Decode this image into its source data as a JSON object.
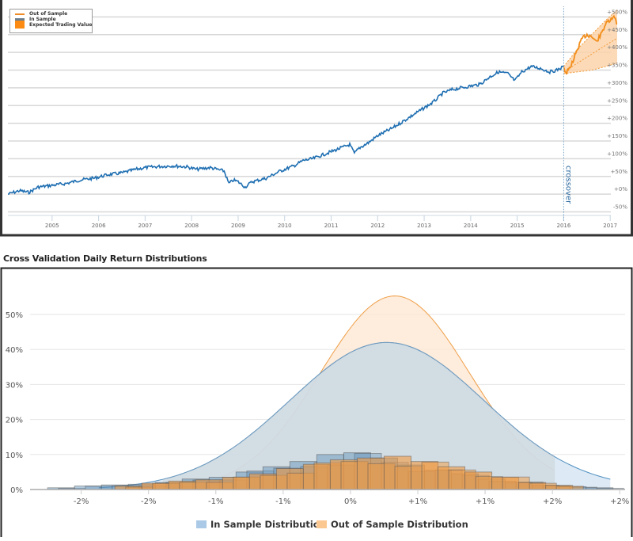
{
  "chart_data": [
    {
      "type": "line",
      "title": "",
      "legend": {
        "placement": "top-left",
        "entries": [
          "Out of Sample",
          "In Sample",
          "Expected Trading Value"
        ]
      },
      "xlabel": "",
      "ylabel": "",
      "x_ticks": [
        "2005",
        "2006",
        "2007",
        "2008",
        "2009",
        "2010",
        "2011",
        "2012",
        "2013",
        "2014",
        "2015",
        "2016",
        "2017"
      ],
      "xlim": [
        2004.05,
        2017.15
      ],
      "y_ticks": [
        "-50%",
        "+0%",
        "+50%",
        "+100%",
        "+150%",
        "+200%",
        "+250%",
        "+300%",
        "+350%",
        "+400%",
        "+450%",
        "+500%"
      ],
      "ylim": [
        -60,
        530
      ],
      "y_axis_side": "right",
      "grid": true,
      "annotation": {
        "label": "crossover",
        "x": 2016.0
      },
      "series": [
        {
          "name": "In Sample",
          "color": "#1f6fb2",
          "x": [
            2004.05,
            2004.3,
            2004.5,
            2004.7,
            2005.0,
            2005.3,
            2005.6,
            2005.9,
            2006.2,
            2006.5,
            2006.8,
            2007.0,
            2007.3,
            2007.6,
            2007.9,
            2008.1,
            2008.4,
            2008.7,
            2008.8,
            2008.9,
            2009.0,
            2009.15,
            2009.3,
            2009.6,
            2009.9,
            2010.2,
            2010.4,
            2010.6,
            2010.8,
            2011.0,
            2011.2,
            2011.4,
            2011.5,
            2011.6,
            2011.8,
            2012.0,
            2012.3,
            2012.6,
            2012.9,
            2013.2,
            2013.4,
            2013.6,
            2013.8,
            2014.0,
            2014.2,
            2014.4,
            2014.6,
            2014.8,
            2014.95,
            2015.1,
            2015.3,
            2015.5,
            2015.6,
            2015.7,
            2015.85,
            2016.0
          ],
          "y": [
            0,
            10,
            5,
            20,
            25,
            30,
            40,
            45,
            55,
            60,
            70,
            75,
            78,
            80,
            77,
            70,
            75,
            65,
            30,
            40,
            35,
            20,
            35,
            45,
            65,
            80,
            95,
            100,
            110,
            120,
            130,
            140,
            115,
            130,
            145,
            165,
            185,
            210,
            235,
            260,
            285,
            295,
            300,
            305,
            310,
            330,
            345,
            340,
            320,
            345,
            360,
            355,
            350,
            345,
            350,
            360
          ]
        },
        {
          "name": "Out of Sample",
          "color": "#f28e1c",
          "x": [
            2016.0,
            2016.05,
            2016.1,
            2016.2,
            2016.3,
            2016.4,
            2016.5,
            2016.6,
            2016.7,
            2016.8,
            2016.9,
            2017.0,
            2017.1,
            2017.15
          ],
          "y": [
            360,
            340,
            350,
            375,
            410,
            440,
            450,
            445,
            430,
            450,
            480,
            490,
            500,
            480
          ]
        },
        {
          "name": "Expected Trading Value",
          "color": "#f28e1c",
          "type": "band",
          "x": [
            2016.0,
            2016.3,
            2016.6,
            2016.9,
            2017.15
          ],
          "upper": [
            360,
            410,
            450,
            490,
            520
          ],
          "center": [
            345,
            370,
            395,
            420,
            440
          ],
          "lower": [
            340,
            345,
            350,
            360,
            370
          ]
        }
      ]
    },
    {
      "type": "area",
      "title": "Cross Validation Daily Return Distributions",
      "xlabel": "",
      "ylabel": "",
      "x_ticks": [
        "-2%",
        "-2%",
        "-1%",
        "-1%",
        "0%",
        "+1%",
        "+1%",
        "+2%",
        "+2%"
      ],
      "x_tick_values": [
        -2.25,
        -1.75,
        -1.25,
        -0.75,
        -0.25,
        0.25,
        0.75,
        1.25,
        1.75
      ],
      "xlim": [
        -2.63,
        1.79
      ],
      "y_ticks": [
        "0%",
        "10%",
        "20%",
        "30%",
        "40%",
        "50%"
      ],
      "ylim": [
        0,
        0.58
      ],
      "grid": true,
      "legend": {
        "placement": "bottom-center",
        "entries": [
          "In Sample Distribution",
          "Out of Sample Distribution"
        ]
      },
      "series": [
        {
          "name": "In Sample Distribution",
          "color": "#4f8fc0",
          "fill": "#a9c9e6",
          "curve": {
            "mean": 0.02,
            "peak": 0.42,
            "sd": 0.72,
            "x_range": [
              -2.12,
              1.68
            ]
          },
          "histogram": {
            "bin_edges": [
              -2.5,
              -2.3,
              -2.1,
              -1.9,
              -1.7,
              -1.5,
              -1.3,
              -1.1,
              -0.9,
              -0.7,
              -0.5,
              -0.3,
              -0.1,
              0.1,
              0.3,
              0.5,
              0.7,
              0.9,
              1.1,
              1.3,
              1.5,
              1.7
            ],
            "values": [
              0.005,
              0.01,
              0.013,
              0.015,
              0.02,
              0.03,
              0.035,
              0.05,
              0.065,
              0.08,
              0.1,
              0.105,
              0.09,
              0.07,
              0.055,
              0.045,
              0.03,
              0.02,
              0.012,
              0.008,
              0.005
            ]
          }
        },
        {
          "name": "Out of Sample Distribution",
          "color": "#ef9f48",
          "fill": "#fcc891",
          "curve": {
            "mean": 0.08,
            "peak": 0.553,
            "sd": 0.55,
            "x_range": [
              -1.66,
              1.27
            ]
          },
          "histogram": {
            "bin_edges": [
              -2.0,
              -1.8,
              -1.6,
              -1.4,
              -1.2,
              -1.0,
              -0.8,
              -0.6,
              -0.4,
              -0.2,
              0.0,
              0.2,
              0.4,
              0.6,
              0.8,
              1.0,
              1.2,
              1.4
            ],
            "values": [
              0.01,
              0.018,
              0.024,
              0.028,
              0.035,
              0.045,
              0.06,
              0.072,
              0.085,
              0.09,
              0.095,
              0.08,
              0.065,
              0.05,
              0.035,
              0.02,
              0.012
            ]
          }
        }
      ]
    }
  ],
  "top_chart": {
    "legend": {
      "out_of_sample": "Out of Sample",
      "in_sample": "In Sample",
      "expected": "Expected Trading Value"
    },
    "crossover_label": "crossover"
  },
  "bottom_chart": {
    "title": "Cross Validation Daily Return Distributions",
    "legend": {
      "in_sample": "In Sample Distribution",
      "out_of_sample": "Out of Sample Distribution"
    }
  },
  "colors": {
    "in_sample_line": "#1f6fb2",
    "out_sample_line": "#f28e1c",
    "band_fill": "#fcd3aa",
    "in_dist_fill": "#a9c9e6",
    "out_dist_fill": "#fcc891"
  }
}
